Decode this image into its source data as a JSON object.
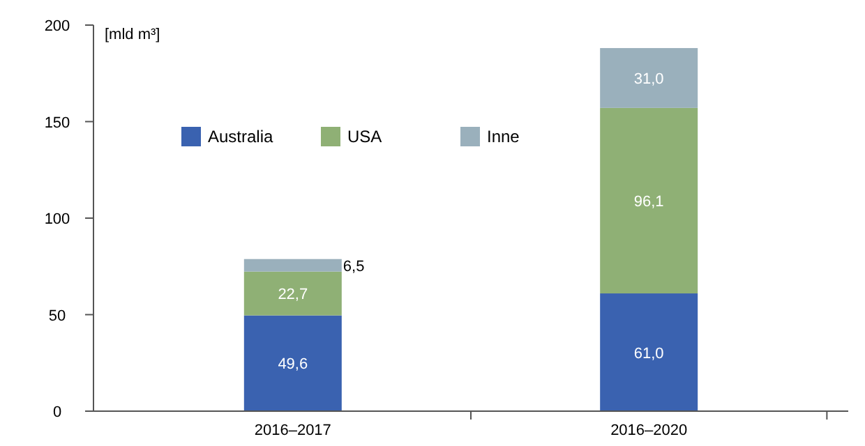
{
  "chart_data": {
    "type": "bar",
    "stacked": true,
    "ylabel": "[mld m³]",
    "categories": [
      "2016–2017",
      "2016–2020"
    ],
    "series": [
      {
        "name": "Australia",
        "color": "#3a62b0",
        "values": [
          49.6,
          61.0
        ],
        "value_labels": [
          "49,6",
          "61,0"
        ]
      },
      {
        "name": "USA",
        "color": "#8fb075",
        "values": [
          22.7,
          96.1
        ],
        "value_labels": [
          "22,7",
          "96,1"
        ]
      },
      {
        "name": "Inne",
        "color": "#9ab0bc",
        "values": [
          6.5,
          31.0
        ],
        "value_labels": [
          "6,5",
          "31,0"
        ]
      }
    ],
    "ylim": [
      0,
      200
    ],
    "yticks": [
      0,
      50,
      100,
      150,
      200
    ],
    "legend": "top",
    "grid": false
  }
}
